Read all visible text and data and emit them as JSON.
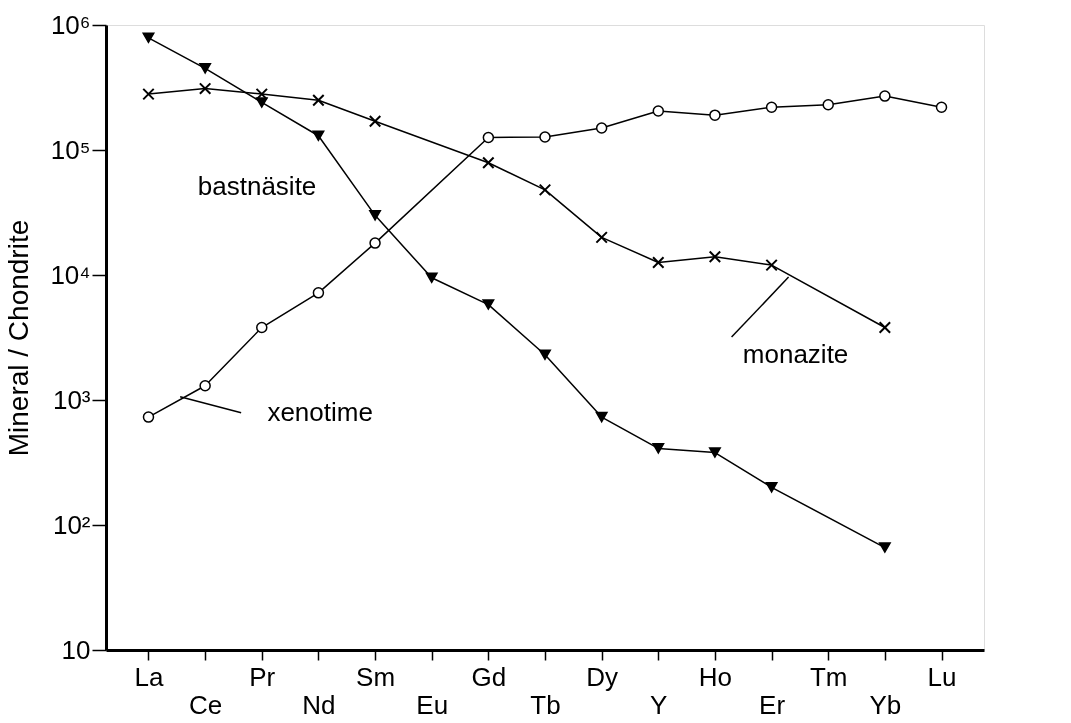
{
  "chart_data": {
    "type": "line",
    "ylabel": "Mineral / Chondrite",
    "categories": [
      "La",
      "Ce",
      "Pr",
      "Nd",
      "Sm",
      "Eu",
      "Gd",
      "Tb",
      "Dy",
      "Y",
      "Ho",
      "Er",
      "Tm",
      "Yb",
      "Lu"
    ],
    "log": true,
    "ylim": [
      10,
      1000000
    ],
    "yticks": [
      {
        "value": 10,
        "label": "10"
      },
      {
        "value": 100,
        "label": "10²"
      },
      {
        "value": 1000,
        "label": "10³"
      },
      {
        "value": 10000,
        "label": "10⁴"
      },
      {
        "value": 100000,
        "label": "10⁵"
      },
      {
        "value": 1000000,
        "label": "10⁶"
      }
    ],
    "series": [
      {
        "name": "bastnäsite",
        "color": "#000000",
        "marker": "triangle",
        "values": [
          790000,
          450000,
          240000,
          130000,
          30000,
          9500,
          5800,
          2300,
          730,
          410,
          380,
          200,
          null,
          66,
          null
        ]
      },
      {
        "name": "monazite",
        "color": "#000000",
        "marker": "cross",
        "values": [
          280000,
          310000,
          280000,
          250000,
          170000,
          null,
          79000,
          48000,
          20000,
          12600,
          14000,
          12000,
          null,
          3800,
          null
        ]
      },
      {
        "name": "xenotime",
        "color": "#000000",
        "marker": "circle",
        "values": [
          730,
          1300,
          3800,
          7200,
          18000,
          null,
          126000,
          127000,
          150000,
          205000,
          190000,
          220000,
          230000,
          270000,
          220000
        ]
      }
    ]
  }
}
